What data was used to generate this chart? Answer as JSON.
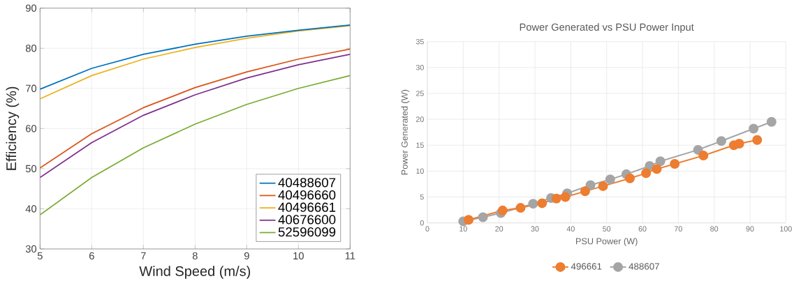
{
  "chart_data": [
    {
      "type": "line",
      "xlabel": "Wind Speed (m/s)",
      "ylabel": "Efficiency (%)",
      "x": [
        5,
        6,
        7,
        8,
        9,
        10,
        11
      ],
      "xlim": [
        5,
        11
      ],
      "ylim": [
        30,
        90
      ],
      "xticks": [
        5,
        6,
        7,
        8,
        9,
        10,
        11
      ],
      "yticks": [
        30,
        40,
        50,
        60,
        70,
        80,
        90
      ],
      "grid": true,
      "legend": "bottom right",
      "marker": "none",
      "line_style": "solid",
      "series": [
        {
          "name": "40488607",
          "color": "#0072bd",
          "values": [
            69.8,
            75,
            78.5,
            81,
            83,
            84.5,
            85.8
          ]
        },
        {
          "name": "40496660",
          "color": "#d95319",
          "values": [
            50.2,
            58.7,
            65.2,
            70.2,
            74.1,
            77.3,
            79.8
          ]
        },
        {
          "name": "40496661",
          "color": "#edb120",
          "values": [
            67.4,
            73.2,
            77.3,
            80.2,
            82.5,
            84.3,
            85.6
          ]
        },
        {
          "name": "40676600",
          "color": "#7e2f8e",
          "values": [
            47.8,
            56.5,
            63.3,
            68.4,
            72.6,
            75.9,
            78.5
          ]
        },
        {
          "name": "52596099",
          "color": "#77ac30",
          "values": [
            38.5,
            47.8,
            55.2,
            61.1,
            66,
            70,
            73.2
          ]
        }
      ]
    },
    {
      "type": "line",
      "title": "Power Generated vs PSU Power Input",
      "xlabel": "PSU Power (W)",
      "ylabel": "Power Generated (W)",
      "xlim": [
        0,
        100
      ],
      "ylim": [
        0,
        35
      ],
      "xticks": [
        0,
        10,
        20,
        30,
        40,
        50,
        60,
        70,
        80,
        90,
        100
      ],
      "yticks": [
        0,
        5,
        10,
        15,
        20,
        25,
        30,
        35
      ],
      "grid": true,
      "legend": "bottom",
      "marker": "circle",
      "line_style": "solid",
      "series": [
        {
          "name": "496661",
          "color": "#ed7d31",
          "x": [
            11.5,
            21,
            26,
            32,
            36,
            38.5,
            44,
            49,
            56.5,
            61,
            64,
            69,
            77,
            85.5,
            87,
            92
          ],
          "values": [
            0.6,
            2.4,
            2.9,
            3.8,
            4.7,
            5.0,
            6.1,
            7.1,
            8.6,
            9.6,
            10.4,
            11.4,
            13,
            15,
            15.3,
            16
          ]
        },
        {
          "name": "488607",
          "color": "#a5a5a5",
          "x": [
            10,
            15.5,
            20.5,
            29.5,
            34.5,
            39,
            45.5,
            51,
            55.5,
            62,
            65,
            75.5,
            82,
            91,
            96
          ],
          "values": [
            0.3,
            1.1,
            1.9,
            3.7,
            4.8,
            5.7,
            7.3,
            8.4,
            9.4,
            11,
            11.9,
            14.1,
            15.8,
            18.2,
            19.5
          ]
        }
      ]
    }
  ]
}
